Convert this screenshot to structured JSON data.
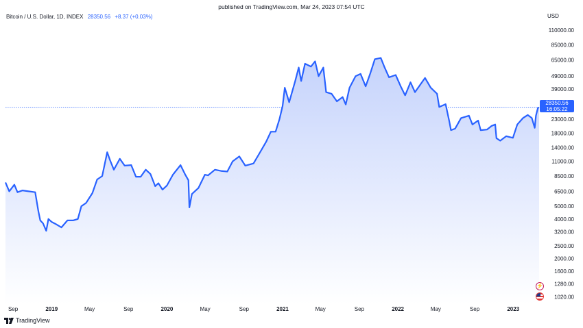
{
  "header": {
    "published": "published on TradingView.com, Mar 24, 2023 07:54 UTC"
  },
  "legend": {
    "title": "Bitcoin / U.S. Dollar, 1D, INDEX",
    "price": "28350.56",
    "change": "+8.37 (+0.03%)"
  },
  "currency": "USD",
  "price_tag": {
    "price": "28350.56",
    "countdown": "16:05:22"
  },
  "footer": {
    "brand": "TradingView"
  },
  "icons": {
    "flash": "flash-icon",
    "flag": "us-flag-icon",
    "logo": "tradingview-logo-icon"
  },
  "colors": {
    "line": "#2962ff",
    "fill_top": "#c5d3fc",
    "fill_bottom": "#ffffff",
    "tag": "#2962ff"
  },
  "chart_data": {
    "type": "area",
    "title": "Bitcoin / U.S. Dollar, 1D, INDEX",
    "yscale": "log",
    "ylim": [
      900,
      130000
    ],
    "xlim": [
      "2018-08-08",
      "2023-03-24"
    ],
    "grid": false,
    "y_ticks": [
      "110000.00",
      "85000.00",
      "65000.00",
      "49000.00",
      "39000.00",
      "31000.00",
      "23000.00",
      "18000.00",
      "14000.00",
      "11000.00",
      "8500.00",
      "6500.00",
      "5000.00",
      "4000.00",
      "3200.00",
      "2500.00",
      "2000.00",
      "1600.00",
      "1280.00",
      "1020.00"
    ],
    "x_ticks": [
      {
        "label": "Sep",
        "date": "2018-09-01"
      },
      {
        "label": "2019",
        "date": "2019-01-01",
        "bold": true
      },
      {
        "label": "May",
        "date": "2019-05-01"
      },
      {
        "label": "Sep",
        "date": "2019-09-01"
      },
      {
        "label": "2020",
        "date": "2020-01-01",
        "bold": true
      },
      {
        "label": "May",
        "date": "2020-05-01"
      },
      {
        "label": "Sep",
        "date": "2020-09-01"
      },
      {
        "label": "2021",
        "date": "2021-01-01",
        "bold": true
      },
      {
        "label": "May",
        "date": "2021-05-01"
      },
      {
        "label": "Sep",
        "date": "2021-09-01"
      },
      {
        "label": "2022",
        "date": "2022-01-01",
        "bold": true
      },
      {
        "label": "May",
        "date": "2022-05-01"
      },
      {
        "label": "Sep",
        "date": "2022-09-01"
      },
      {
        "label": "2023",
        "date": "2023-01-01",
        "bold": true
      }
    ],
    "last_value": 28350.56,
    "points": [
      [
        "2018-08-08",
        7600
      ],
      [
        "2018-08-20",
        6500
      ],
      [
        "2018-09-05",
        7300
      ],
      [
        "2018-09-15",
        6400
      ],
      [
        "2018-10-01",
        6600
      ],
      [
        "2018-10-20",
        6500
      ],
      [
        "2018-11-10",
        6400
      ],
      [
        "2018-11-20",
        4600
      ],
      [
        "2018-11-26",
        3900
      ],
      [
        "2018-12-05",
        3700
      ],
      [
        "2018-12-15",
        3250
      ],
      [
        "2018-12-22",
        4000
      ],
      [
        "2019-01-01",
        3800
      ],
      [
        "2019-01-15",
        3650
      ],
      [
        "2019-02-01",
        3450
      ],
      [
        "2019-02-20",
        3900
      ],
      [
        "2019-03-10",
        3900
      ],
      [
        "2019-03-25",
        4000
      ],
      [
        "2019-04-05",
        5000
      ],
      [
        "2019-04-20",
        5300
      ],
      [
        "2019-05-10",
        6300
      ],
      [
        "2019-05-25",
        8000
      ],
      [
        "2019-06-10",
        8500
      ],
      [
        "2019-06-26",
        12900
      ],
      [
        "2019-07-05",
        11200
      ],
      [
        "2019-07-17",
        9500
      ],
      [
        "2019-08-05",
        11500
      ],
      [
        "2019-08-20",
        10200
      ],
      [
        "2019-09-10",
        10300
      ],
      [
        "2019-09-25",
        8400
      ],
      [
        "2019-10-10",
        8400
      ],
      [
        "2019-10-26",
        9500
      ],
      [
        "2019-11-10",
        8800
      ],
      [
        "2019-11-25",
        7100
      ],
      [
        "2019-12-05",
        7500
      ],
      [
        "2019-12-18",
        6700
      ],
      [
        "2020-01-01",
        7200
      ],
      [
        "2020-01-20",
        8700
      ],
      [
        "2020-02-13",
        10300
      ],
      [
        "2020-02-28",
        8700
      ],
      [
        "2020-03-09",
        7900
      ],
      [
        "2020-03-12",
        4900
      ],
      [
        "2020-03-20",
        6200
      ],
      [
        "2020-04-10",
        6900
      ],
      [
        "2020-04-30",
        8700
      ],
      [
        "2020-05-10",
        8600
      ],
      [
        "2020-06-01",
        9500
      ],
      [
        "2020-06-20",
        9300
      ],
      [
        "2020-07-10",
        9200
      ],
      [
        "2020-07-27",
        11000
      ],
      [
        "2020-08-17",
        12000
      ],
      [
        "2020-09-05",
        10200
      ],
      [
        "2020-10-01",
        10600
      ],
      [
        "2020-10-21",
        12800
      ],
      [
        "2020-11-10",
        15500
      ],
      [
        "2020-11-25",
        18500
      ],
      [
        "2020-12-10",
        18500
      ],
      [
        "2020-12-22",
        23000
      ],
      [
        "2021-01-01",
        29000
      ],
      [
        "2021-01-08",
        40000
      ],
      [
        "2021-01-22",
        31000
      ],
      [
        "2021-02-10",
        45000
      ],
      [
        "2021-02-21",
        57000
      ],
      [
        "2021-03-01",
        45000
      ],
      [
        "2021-03-13",
        61000
      ],
      [
        "2021-04-01",
        58000
      ],
      [
        "2021-04-14",
        63500
      ],
      [
        "2021-04-25",
        49000
      ],
      [
        "2021-05-10",
        57000
      ],
      [
        "2021-05-19",
        37000
      ],
      [
        "2021-06-05",
        36000
      ],
      [
        "2021-06-22",
        31500
      ],
      [
        "2021-07-10",
        34000
      ],
      [
        "2021-07-20",
        29800
      ],
      [
        "2021-08-01",
        40000
      ],
      [
        "2021-08-20",
        49000
      ],
      [
        "2021-09-05",
        51000
      ],
      [
        "2021-09-21",
        41000
      ],
      [
        "2021-10-05",
        51000
      ],
      [
        "2021-10-20",
        66000
      ],
      [
        "2021-11-08",
        67500
      ],
      [
        "2021-11-20",
        57000
      ],
      [
        "2021-12-04",
        48000
      ],
      [
        "2021-12-25",
        50000
      ],
      [
        "2022-01-10",
        41000
      ],
      [
        "2022-01-24",
        35000
      ],
      [
        "2022-02-10",
        44000
      ],
      [
        "2022-02-24",
        37000
      ],
      [
        "2022-03-28",
        47500
      ],
      [
        "2022-04-15",
        40000
      ],
      [
        "2022-05-05",
        36000
      ],
      [
        "2022-05-12",
        28500
      ],
      [
        "2022-06-01",
        30000
      ],
      [
        "2022-06-13",
        22000
      ],
      [
        "2022-06-18",
        19000
      ],
      [
        "2022-07-01",
        19500
      ],
      [
        "2022-07-20",
        23500
      ],
      [
        "2022-08-14",
        24500
      ],
      [
        "2022-08-25",
        21000
      ],
      [
        "2022-09-12",
        22500
      ],
      [
        "2022-09-20",
        19000
      ],
      [
        "2022-10-10",
        19200
      ],
      [
        "2022-10-25",
        20500
      ],
      [
        "2022-11-05",
        21000
      ],
      [
        "2022-11-09",
        16500
      ],
      [
        "2022-11-21",
        15800
      ],
      [
        "2022-12-10",
        17100
      ],
      [
        "2022-12-31",
        16600
      ],
      [
        "2023-01-14",
        21000
      ],
      [
        "2023-02-01",
        23500
      ],
      [
        "2023-02-16",
        24800
      ],
      [
        "2023-03-01",
        23500
      ],
      [
        "2023-03-10",
        19800
      ],
      [
        "2023-03-14",
        24500
      ],
      [
        "2023-03-20",
        28000
      ],
      [
        "2023-03-24",
        28350.56
      ]
    ]
  }
}
